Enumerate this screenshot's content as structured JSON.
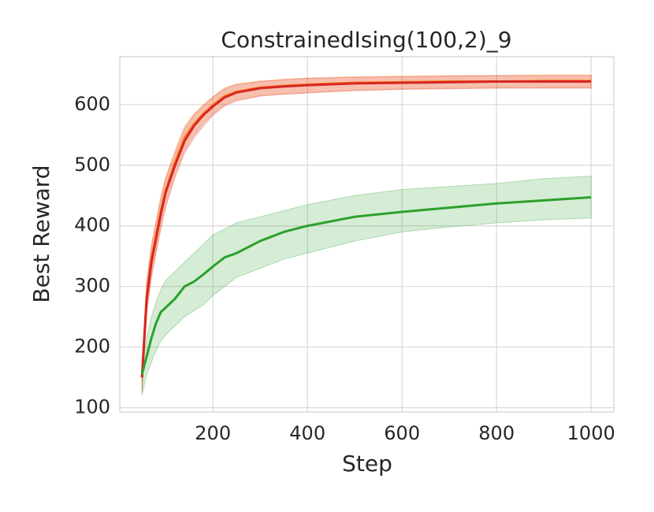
{
  "chart_data": {
    "type": "line",
    "title": "ConstrainedIsing(100,2)_9",
    "x_label": "Step",
    "y_label": "Best Reward",
    "x": [
      50,
      60,
      70,
      80,
      90,
      100,
      120,
      140,
      160,
      180,
      200,
      225,
      250,
      300,
      350,
      400,
      500,
      600,
      700,
      800,
      900,
      1000
    ],
    "series": [
      {
        "color": "#ff7f0e",
        "values": [
          150,
          285,
          345,
          385,
          425,
          458,
          505,
          545,
          568,
          585,
          599,
          614,
          621,
          628,
          631,
          633,
          636,
          637,
          638,
          638,
          639,
          639
        ],
        "lower": [
          130,
          260,
          320,
          360,
          400,
          435,
          485,
          525,
          550,
          570,
          585,
          600,
          608,
          615,
          618,
          620,
          624,
          626,
          627,
          628,
          628,
          628
        ],
        "upper": [
          170,
          310,
          370,
          410,
          450,
          480,
          525,
          565,
          585,
          600,
          613,
          628,
          634,
          639,
          642,
          644,
          646,
          647,
          648,
          648,
          649,
          649
        ]
      },
      {
        "color": "#d62728",
        "values": [
          150,
          280,
          340,
          380,
          420,
          455,
          500,
          540,
          565,
          583,
          597,
          612,
          620,
          627,
          630,
          632,
          635,
          636,
          637,
          638,
          638,
          638
        ],
        "lower": [
          125,
          255,
          315,
          355,
          395,
          430,
          480,
          520,
          545,
          565,
          582,
          598,
          606,
          614,
          617,
          619,
          623,
          625,
          626,
          627,
          627,
          627
        ],
        "upper": [
          175,
          305,
          365,
          405,
          445,
          478,
          520,
          560,
          583,
          598,
          612,
          626,
          633,
          638,
          641,
          643,
          645,
          646,
          647,
          648,
          648,
          648
        ]
      },
      {
        "color": "#2ca02c",
        "values": [
          155,
          185,
          215,
          240,
          258,
          265,
          280,
          300,
          308,
          320,
          333,
          348,
          355,
          375,
          390,
          400,
          415,
          423,
          430,
          437,
          442,
          447
        ],
        "lower": [
          120,
          155,
          175,
          195,
          210,
          220,
          235,
          250,
          260,
          270,
          285,
          300,
          315,
          330,
          345,
          355,
          375,
          390,
          398,
          405,
          410,
          413
        ],
        "upper": [
          160,
          215,
          250,
          275,
          295,
          310,
          325,
          340,
          355,
          370,
          385,
          395,
          405,
          415,
          425,
          435,
          450,
          460,
          465,
          470,
          478,
          482
        ]
      }
    ],
    "xlim": [
      3,
      1048
    ],
    "ylim": [
      93,
      679
    ],
    "xticks": [
      200,
      400,
      600,
      800,
      1000
    ],
    "yticks": [
      100,
      200,
      300,
      400,
      500,
      600
    ],
    "grid": true
  }
}
